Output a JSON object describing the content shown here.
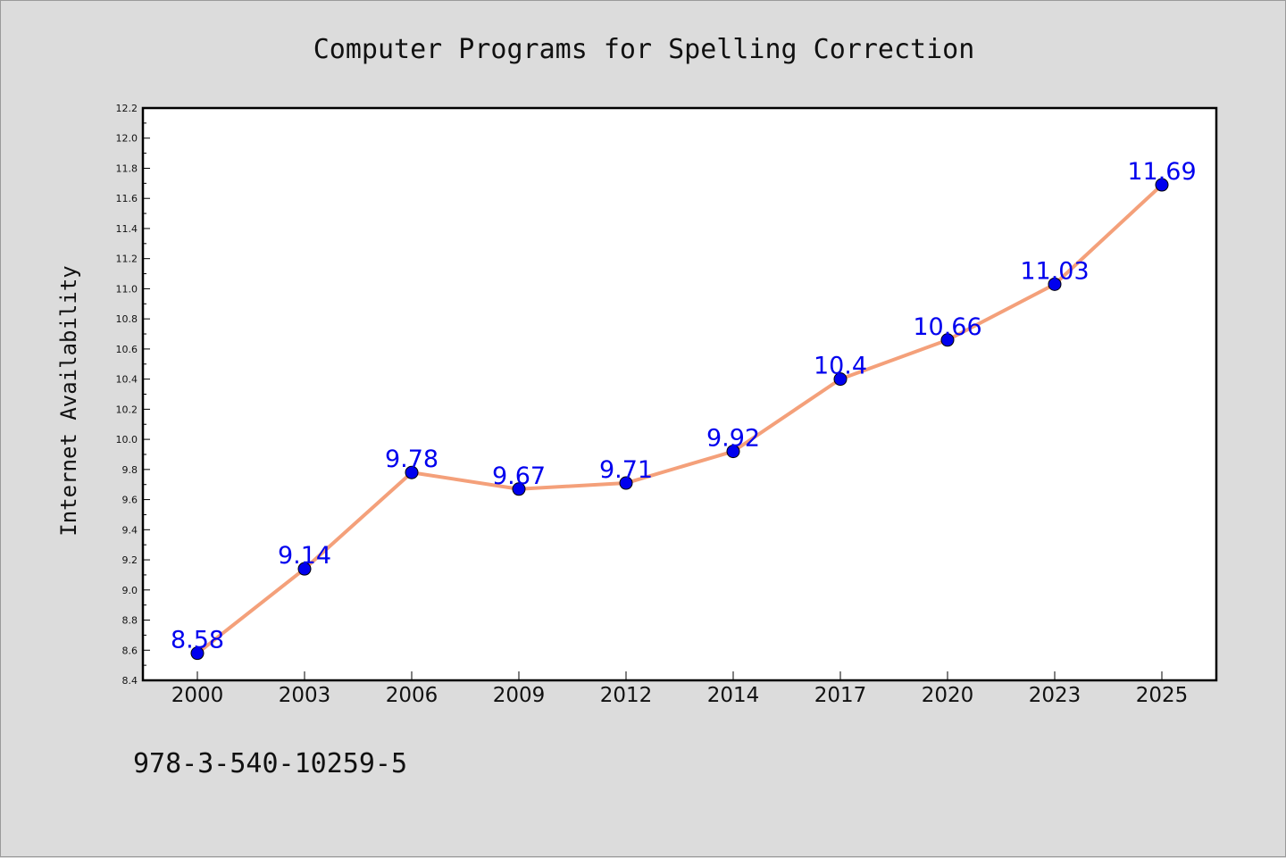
{
  "chart_data": {
    "type": "line",
    "title": "Computer Programs for Spelling Correction",
    "xlabel": "",
    "ylabel": "Internet Availability",
    "categories": [
      "2000",
      "2003",
      "2006",
      "2009",
      "2012",
      "2014",
      "2017",
      "2020",
      "2023",
      "2025"
    ],
    "series": [
      {
        "values": [
          8.58,
          9.14,
          9.78,
          9.67,
          9.71,
          9.92,
          10.4,
          10.66,
          11.03,
          11.69
        ],
        "data_labels": [
          "8.58",
          "9.14",
          "9.78",
          "9.67",
          "9.71",
          "9.92",
          "10.4",
          "10.66",
          "11.03",
          "11.69"
        ],
        "line_color": "#f4a07a",
        "marker_color": "#0000ee",
        "label_color": "#0000ee"
      }
    ],
    "ylim": [
      8.4,
      12.2
    ],
    "yticks": [
      "8.4",
      "8.6",
      "8.8",
      "9.0",
      "9.2",
      "9.4",
      "9.6",
      "9.8",
      "10.0",
      "10.2",
      "10.4",
      "10.6",
      "10.8",
      "11.0",
      "11.2",
      "11.4",
      "11.6",
      "11.8",
      "12.0",
      "12.2"
    ],
    "grid": false,
    "legend": "none",
    "background_color": "#dcdcdc",
    "plot_background_color": "#ffffff"
  },
  "footnote": "978-3-540-10259-5"
}
